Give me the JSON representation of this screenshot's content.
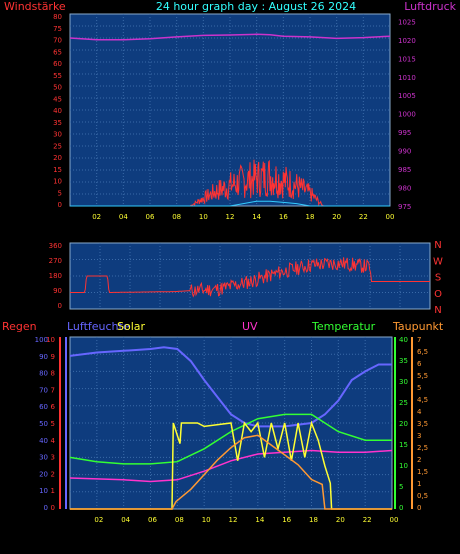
{
  "chart_data": [
    {
      "type": "line",
      "title": "24 hour graph day : August 26 2024",
      "ylabel": "Windstärke",
      "y2label": "Luftdruck",
      "x_ticks": [
        "02",
        "04",
        "06",
        "08",
        "10",
        "12",
        "14",
        "16",
        "18",
        "20",
        "22",
        "00"
      ],
      "ylim": [
        0,
        80
      ],
      "y_ticks": [
        "80",
        "75",
        "70",
        "65",
        "60",
        "55",
        "50",
        "45",
        "40",
        "35",
        "30",
        "25",
        "20",
        "15",
        "10",
        "5",
        "0"
      ],
      "y2lim": [
        975,
        1027
      ],
      "y2_ticks": [
        "1025",
        "1020",
        "1015",
        "1010",
        "1005",
        "1000",
        "995",
        "990",
        "985",
        "980",
        "975"
      ],
      "series": [
        {
          "axis": "y2",
          "color": "#cc33cc",
          "x": [
            0,
            2,
            4,
            6,
            8,
            10,
            12,
            14,
            15,
            16,
            18,
            20,
            22,
            24
          ],
          "values": [
            1020.5,
            1020,
            1020,
            1020.3,
            1020.8,
            1021.2,
            1021.3,
            1021.5,
            1021.4,
            1021,
            1020.8,
            1020.4,
            1020.6,
            1021
          ]
        },
        {
          "axis": "y",
          "color": "#ff3333",
          "x": [
            0,
            9,
            10,
            11,
            12,
            13,
            14,
            15,
            16,
            17,
            18,
            19,
            24
          ],
          "values": [
            0,
            0,
            3,
            6,
            8,
            10,
            11,
            12,
            10,
            8,
            5,
            0,
            0
          ]
        },
        {
          "axis": "y",
          "color": "#33ccff",
          "x": [
            0,
            12,
            13,
            14,
            15,
            16,
            17,
            18,
            24
          ],
          "values": [
            0,
            0,
            1,
            2,
            2,
            1.5,
            1,
            0,
            0
          ]
        }
      ]
    },
    {
      "type": "line",
      "ylim": [
        0,
        360
      ],
      "y_ticks": [
        "360",
        "270",
        "180",
        "90",
        "0"
      ],
      "y2_ticks": [
        "N",
        "W",
        "S",
        "O",
        "N"
      ],
      "x_ticks": [],
      "series": [
        {
          "color": "#ff3333",
          "x": [
            0,
            1,
            1.1,
            2.5,
            2.6,
            7,
            10,
            12,
            14,
            16,
            18,
            20,
            20.1,
            24
          ],
          "values": [
            90,
            90,
            180,
            180,
            90,
            95,
            110,
            150,
            200,
            240,
            250,
            230,
            150,
            150
          ]
        }
      ]
    },
    {
      "type": "line",
      "labels": {
        "regen": "Regen",
        "luftfeuchte": "Luftfeuchte",
        "solar": "Solar",
        "uv": "UV",
        "temperatur": "Temperatur",
        "taupunkt": "Taupunkt"
      },
      "colors": {
        "regen": "#ff3333",
        "luftfeuchte": "#6666ff",
        "solar": "#ffff33",
        "uv": "#ff33cc",
        "temperatur": "#33ff33",
        "taupunkt": "#ff9933"
      },
      "x_ticks": [
        "02",
        "04",
        "06",
        "08",
        "10",
        "12",
        "14",
        "16",
        "18",
        "20",
        "22",
        "00"
      ],
      "y_left1_ticks": [
        "0",
        "1",
        "2",
        "3",
        "4",
        "5",
        "6",
        "7",
        "8",
        "9",
        "10"
      ],
      "y_left2_ticks": [
        "100",
        "90",
        "80",
        "70",
        "60",
        "50",
        "40",
        "30",
        "20",
        "10",
        "0"
      ],
      "ylim": [
        0,
        100
      ],
      "y_right1_ticks": [
        "40",
        "35",
        "30",
        "25",
        "20",
        "15",
        "10",
        "5",
        "0"
      ],
      "y_right1_lim": [
        0,
        40
      ],
      "y_right2_ticks": [
        "7",
        "6,5",
        "6",
        "5,5",
        "5",
        "4,5",
        "4",
        "3,5",
        "3",
        "2,5",
        "2",
        "1,5",
        "1",
        "0,5",
        "0"
      ],
      "y_right2_lim": [
        0,
        7
      ],
      "series": [
        {
          "key": "luftfeuchte",
          "axis": "left2",
          "x": [
            0,
            2,
            4,
            6,
            7,
            8,
            9,
            10,
            11,
            12,
            13,
            14,
            16,
            18,
            19,
            20,
            21,
            22,
            23,
            24
          ],
          "values": [
            89,
            91,
            92,
            93,
            94,
            93,
            86,
            75,
            65,
            55,
            50,
            48,
            48,
            50,
            55,
            63,
            75,
            80,
            84,
            84
          ]
        },
        {
          "key": "temperatur",
          "axis": "right1",
          "x": [
            0,
            2,
            4,
            6,
            8,
            10,
            12,
            14,
            16,
            18,
            19,
            20,
            22,
            24
          ],
          "values": [
            12,
            11,
            10.5,
            10.5,
            11,
            14,
            18,
            21,
            22,
            22,
            20,
            18,
            16,
            16
          ]
        },
        {
          "key": "uv",
          "axis": "left2",
          "x": [
            0,
            4,
            6,
            8,
            10,
            12,
            14,
            16,
            18,
            20,
            22,
            24
          ],
          "values": [
            18,
            17,
            16,
            17,
            22,
            28,
            32,
            33,
            34,
            33,
            33,
            34
          ]
        },
        {
          "key": "solar",
          "axis": "left2",
          "x": [
            0,
            7.6,
            7.7,
            8.2,
            8.3,
            9.5,
            10,
            12,
            12.5,
            13,
            13.5,
            14,
            14.5,
            15,
            15.5,
            16,
            16.5,
            17,
            17.5,
            18,
            18.5,
            19,
            19.4,
            19.5,
            24
          ],
          "values": [
            0,
            0,
            50,
            38,
            50,
            50,
            48,
            50,
            28,
            50,
            45,
            50,
            30,
            50,
            35,
            50,
            28,
            50,
            30,
            50,
            40,
            25,
            15,
            0,
            0
          ]
        },
        {
          "key": "taupunkt",
          "axis": "right2",
          "x": [
            0,
            7.6,
            7.9,
            9,
            10,
            11,
            12,
            13,
            14,
            15,
            16,
            17,
            18,
            18.8,
            19,
            24
          ],
          "values": [
            0,
            0,
            0.3,
            0.8,
            1.4,
            2,
            2.5,
            2.9,
            3,
            2.6,
            2.2,
            1.8,
            1.2,
            1,
            0,
            0
          ]
        }
      ]
    }
  ]
}
